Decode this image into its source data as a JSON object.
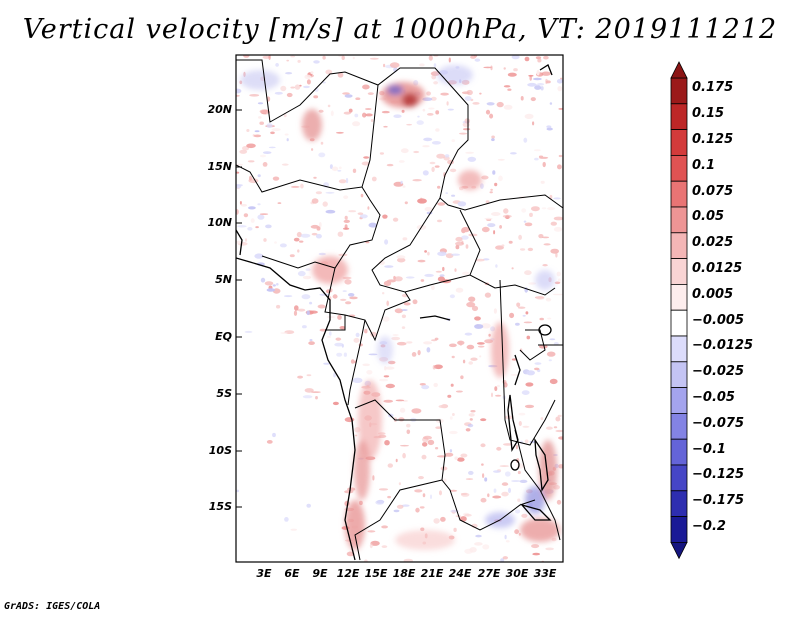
{
  "title": "Vertical velocity [m/s] at 1000hPa, VT: 2019111212",
  "footer": "GrADS: IGES/COLA",
  "map": {
    "region": "Central Africa",
    "lat_labels": [
      "20N",
      "15N",
      "10N",
      "5N",
      "EQ",
      "5S",
      "10S",
      "15S"
    ],
    "lon_labels": [
      "3E",
      "6E",
      "9E",
      "12E",
      "15E",
      "18E",
      "21E",
      "24E",
      "27E",
      "30E",
      "33E"
    ]
  },
  "colorbar": {
    "labels": [
      "0.175",
      "0.15",
      "0.125",
      "0.1",
      "0.075",
      "0.05",
      "0.025",
      "0.0125",
      "0.005",
      "-0.005",
      "-0.0125",
      "-0.025",
      "-0.05",
      "-0.075",
      "-0.1",
      "-0.125",
      "-0.175",
      "-0.2"
    ],
    "colors": [
      "#9b1a1a",
      "#bd2727",
      "#d33b3b",
      "#e05353",
      "#e97474",
      "#ee9595",
      "#f4b6b6",
      "#f9d4d4",
      "#fdeded",
      "#ffffff",
      "#dcdcfb",
      "#c4c4f4",
      "#a4a4ee",
      "#8383e4",
      "#6464d8",
      "#4646c6",
      "#2e2eb0",
      "#1a1a96"
    ],
    "arrow_top_color": "#8b1515",
    "arrow_bottom_color": "#15157f"
  }
}
